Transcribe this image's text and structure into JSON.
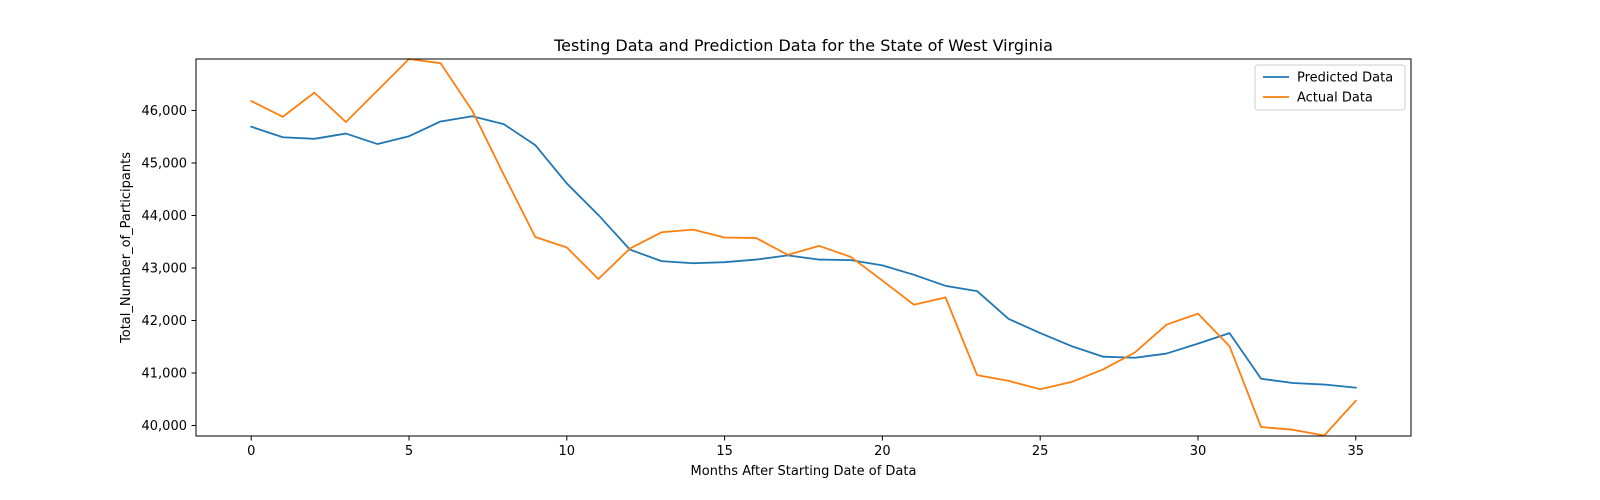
{
  "chart_data": {
    "type": "line",
    "title": "Testing Data and Prediction Data for the State of West Virginia",
    "xlabel": "Months After Starting Date of Data",
    "ylabel": "Total_Number_of_Participants",
    "x": [
      0,
      1,
      2,
      3,
      4,
      5,
      6,
      7,
      8,
      9,
      10,
      11,
      12,
      13,
      14,
      15,
      16,
      17,
      18,
      19,
      20,
      21,
      22,
      23,
      24,
      25,
      26,
      27,
      28,
      29,
      30,
      31,
      32,
      33,
      34,
      35
    ],
    "xlim": [
      -1.75,
      36.75
    ],
    "ylim": [
      39800,
      46980
    ],
    "xticks": [
      0,
      5,
      10,
      15,
      20,
      25,
      30,
      35
    ],
    "xtick_labels": [
      "0",
      "5",
      "10",
      "15",
      "20",
      "25",
      "30",
      "35"
    ],
    "yticks": [
      40000,
      41000,
      42000,
      43000,
      44000,
      45000,
      46000
    ],
    "ytick_labels": [
      "40,000",
      "41,000",
      "42,000",
      "43,000",
      "44,000",
      "45,000",
      "46,000"
    ],
    "legend_position": "top-right",
    "grid": false,
    "series": [
      {
        "name": "Predicted Data",
        "color": "#1f77b4",
        "values": [
          45690,
          45490,
          45460,
          45560,
          45360,
          45510,
          45790,
          45890,
          45740,
          45340,
          44610,
          44010,
          43350,
          43130,
          43090,
          43110,
          43160,
          43240,
          43160,
          43150,
          43050,
          42870,
          42660,
          42560,
          42030,
          41760,
          41510,
          41310,
          41290,
          41370,
          41560,
          41760,
          40890,
          40810,
          40780,
          40720
        ]
      },
      {
        "name": "Actual Data",
        "color": "#ff7f0e",
        "values": [
          46180,
          45880,
          46340,
          45780,
          46380,
          46980,
          46900,
          46000,
          44780,
          43590,
          43390,
          42790,
          43370,
          43680,
          43730,
          43580,
          43570,
          43250,
          43420,
          43210,
          42760,
          42300,
          42440,
          40960,
          40850,
          40690,
          40830,
          41070,
          41390,
          41920,
          42130,
          41510,
          39970,
          39920,
          39810,
          40470
        ]
      }
    ]
  }
}
